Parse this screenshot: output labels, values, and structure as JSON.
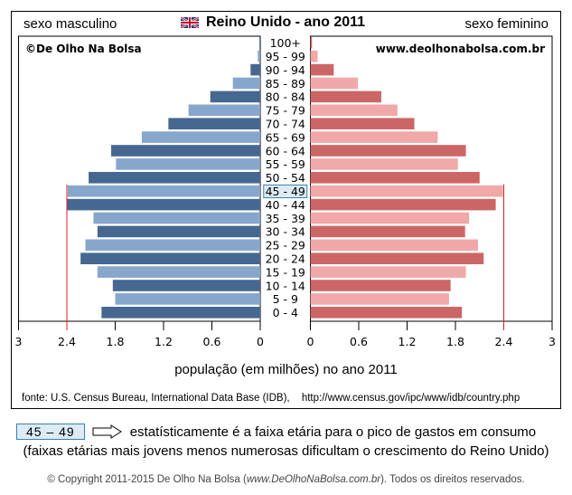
{
  "header": {
    "left_label": "sexo masculino",
    "right_label": "sexo feminino",
    "flag_icon": "uk-flag-icon"
  },
  "watermarks": {
    "left": "©De Olho Na Bolsa",
    "right": "www.deolhonabolsa.com.br"
  },
  "colors": {
    "male_dark": "#466790",
    "male_light": "#87a6cc",
    "female_dark": "#cc6666",
    "female_light": "#f0a8a8",
    "marker_line": "#e02020",
    "highlight_fill": "#dcebf5",
    "highlight_border": "#3a7fb0"
  },
  "chart_data": {
    "type": "bar",
    "orientation": "horizontal-population-pyramid",
    "title": "Reino Unido - ano 2011",
    "xlabel": "população (em milhões) no ano 2011",
    "ylabel": "",
    "xlim": [
      0,
      3
    ],
    "x_ticks": [
      "3",
      "2.4",
      "1.8",
      "1.2",
      "0.6",
      "0"
    ],
    "x_ticks_right": [
      "0",
      "0.6",
      "1.2",
      "1.8",
      "2.4",
      "3"
    ],
    "grid": false,
    "reference_line": 2.4,
    "highlighted_category": "45 - 49",
    "categories": [
      "100+",
      "95 - 99",
      "90 - 94",
      "85 - 89",
      "80 - 84",
      "75 - 79",
      "70 - 74",
      "65 - 69",
      "60 - 64",
      "55 - 59",
      "50 - 54",
      "45 - 49",
      "40 - 44",
      "35 - 39",
      "30 - 34",
      "25 - 29",
      "20 - 24",
      "15 - 19",
      "10 - 14",
      "5 - 9",
      "0 - 4"
    ],
    "series": [
      {
        "name": "sexo masculino",
        "side": "left",
        "values": [
          0.01,
          0.03,
          0.12,
          0.34,
          0.62,
          0.89,
          1.14,
          1.47,
          1.85,
          1.79,
          2.13,
          2.39,
          2.4,
          2.07,
          2.02,
          2.17,
          2.23,
          2.02,
          1.83,
          1.8,
          1.97
        ]
      },
      {
        "name": "sexo feminino",
        "side": "right",
        "values": [
          0.02,
          0.09,
          0.29,
          0.59,
          0.88,
          1.08,
          1.29,
          1.58,
          1.93,
          1.83,
          2.1,
          2.39,
          2.3,
          1.97,
          1.92,
          2.08,
          2.15,
          1.93,
          1.74,
          1.72,
          1.88
        ]
      }
    ]
  },
  "source": {
    "text": "fonte: U.S. Census Bureau, International Data Base (IDB),",
    "url": "http://www.census.gov/ipc/www/idb/country.php"
  },
  "notes": {
    "badge": "45  –  49",
    "arrow_icon": "right-arrow-icon",
    "line1": "estatísticamente é a faixa etária para o pico de gastos em consumo",
    "line2": "(faixas etárias mais jovens menos numerosas dificultam o crescimento do Reino Unido)"
  },
  "copyright": {
    "prefix": "© Copyright 2011-2015  De Olho Na Bolsa (",
    "site": "www.DeOlhoNaBolsa.com.br",
    "suffix": "). Todos os direitos reservados."
  }
}
